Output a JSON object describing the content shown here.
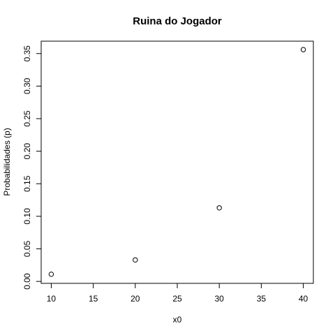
{
  "chart_data": {
    "type": "scatter",
    "title": "Ruina do Jogador",
    "xlabel": "x0",
    "ylabel": "Probabilidades (p)",
    "xlim": [
      8.8,
      41.2
    ],
    "ylim": [
      -0.003,
      0.369
    ],
    "x_ticks": [
      10,
      15,
      20,
      25,
      30,
      35,
      40
    ],
    "y_ticks": [
      0.0,
      0.05,
      0.1,
      0.15,
      0.2,
      0.25,
      0.3,
      0.35
    ],
    "y_tick_labels": [
      "0.00",
      "0.05",
      "0.10",
      "0.15",
      "0.20",
      "0.25",
      "0.30",
      "0.35"
    ],
    "grid": false,
    "marker": "open-circle",
    "series": [
      {
        "x": [
          10,
          20,
          30,
          40
        ],
        "y": [
          0.011,
          0.033,
          0.113,
          0.356
        ]
      }
    ]
  },
  "colors": {
    "axis": "#000000",
    "points": "#000000",
    "background": "#ffffff"
  }
}
